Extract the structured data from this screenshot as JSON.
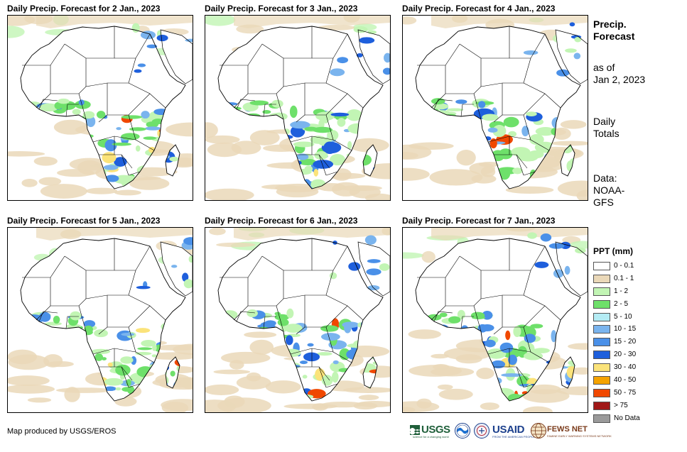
{
  "panels": [
    {
      "title": "Daily Precip. Forecast for 2 Jan., 2023"
    },
    {
      "title": "Daily Precip. Forecast for 3 Jan., 2023"
    },
    {
      "title": "Daily Precip. Forecast for 4 Jan., 2023"
    },
    {
      "title": "Daily Precip. Forecast for 5 Jan., 2023"
    },
    {
      "title": "Daily Precip. Forecast for 6 Jan., 2023"
    },
    {
      "title": "Daily Precip. Forecast for 7 Jan., 2023"
    }
  ],
  "side": {
    "title_line1": "Precip.",
    "title_line2": "Forecast",
    "asof_line1": "as of",
    "asof_line2": "Jan 2, 2023",
    "daily_line1": "Daily",
    "daily_line2": "Totals",
    "data_line1": "Data:",
    "data_line2": "NOAA-",
    "data_line3": "GFS"
  },
  "legend": {
    "title": "PPT (mm)",
    "items": [
      {
        "label": "0 - 0.1",
        "color": "#ffffff"
      },
      {
        "label": "0.1 - 1",
        "color": "#ead8b8"
      },
      {
        "label": "1 - 2",
        "color": "#c2f5b4"
      },
      {
        "label": "2 - 5",
        "color": "#6ee06a"
      },
      {
        "label": "5 - 10",
        "color": "#b4ecf4"
      },
      {
        "label": "10 - 15",
        "color": "#7ab4ee"
      },
      {
        "label": "15 - 20",
        "color": "#4a90e8"
      },
      {
        "label": "20 - 30",
        "color": "#1e5fdc"
      },
      {
        "label": "30 - 40",
        "color": "#fbe37a"
      },
      {
        "label": "40 - 50",
        "color": "#f5a300"
      },
      {
        "label": "50 - 75",
        "color": "#f04800"
      },
      {
        "label": "> 75",
        "color": "#a01818"
      },
      {
        "label": "No Data",
        "color": "#9a9a9a"
      }
    ]
  },
  "credit": "Map produced by USGS/EROS",
  "logos": {
    "usgs": "USGS",
    "usgs_tagline": "science for a changing world",
    "usaid": "USAID",
    "usaid_tagline": "FROM THE AMERICAN PEOPLE",
    "fews": "FEWS NET",
    "fews_tagline": "FAMINE EARLY WARNING SYSTEMS NETWORK"
  },
  "colors": {
    "land_bg": "#ffffff",
    "border": "#000000"
  }
}
